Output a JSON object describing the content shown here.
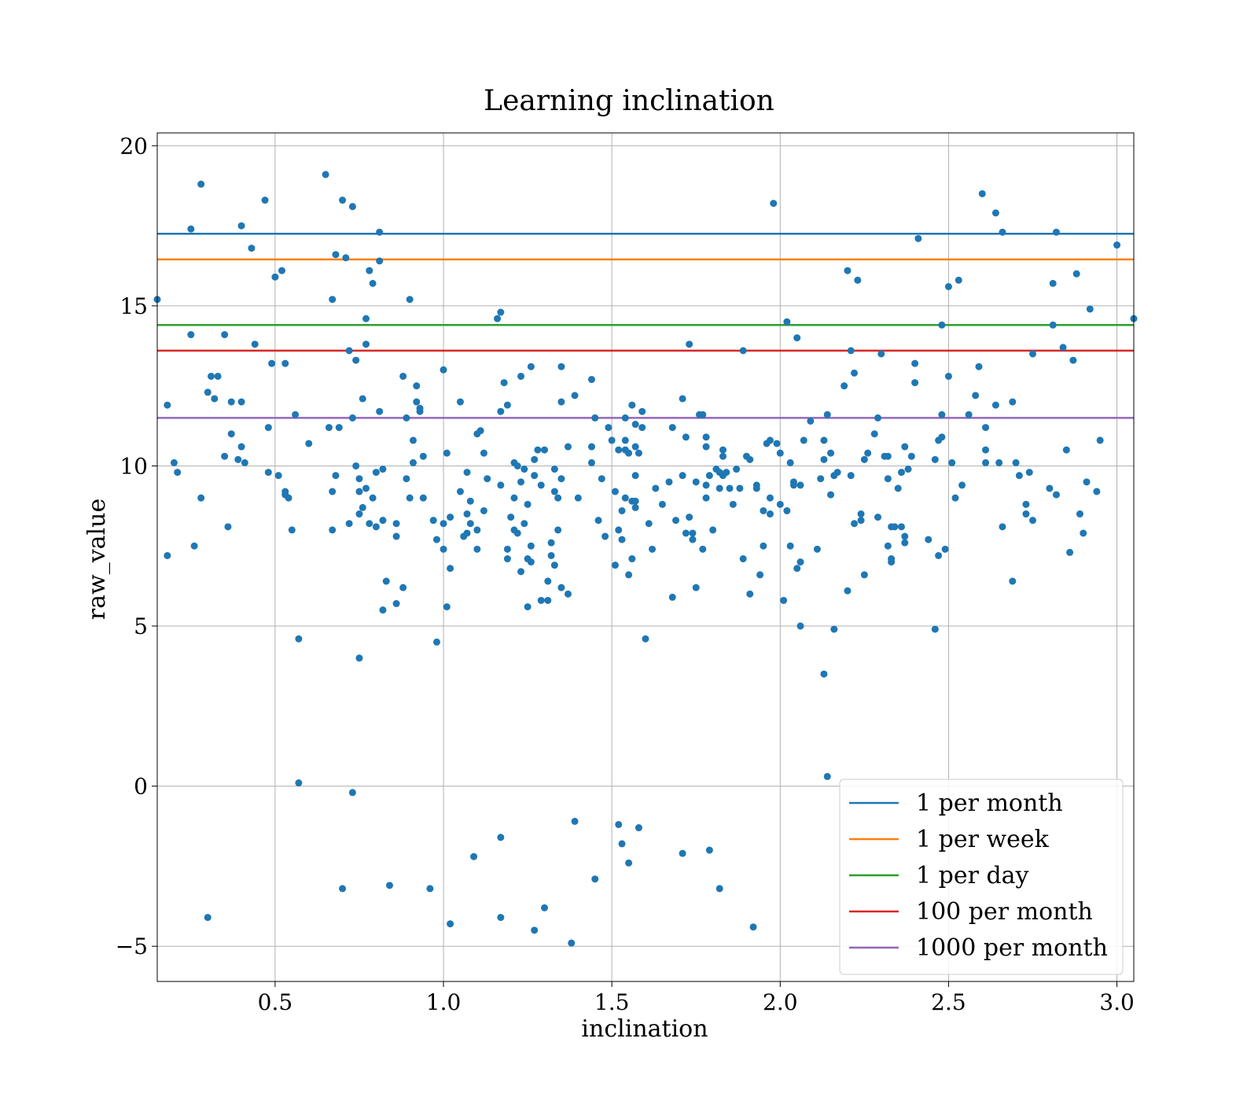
{
  "chart_data": {
    "type": "scatter",
    "title": "Learning inclination",
    "xlabel": "inclination",
    "ylabel": "raw_value",
    "xlim": [
      0.15,
      3.05
    ],
    "ylim": [
      -6.1,
      20.4
    ],
    "grid": true,
    "legend_position": "lower-right",
    "x_ticks": [
      0.5,
      1.0,
      1.5,
      2.0,
      2.5,
      3.0
    ],
    "x_tick_labels": [
      "0.5",
      "1.0",
      "1.5",
      "2.0",
      "2.5",
      "3.0"
    ],
    "y_ticks": [
      -5,
      0,
      5,
      10,
      15,
      20
    ],
    "y_tick_labels": [
      "−5",
      "0",
      "5",
      "10",
      "15",
      "20"
    ],
    "point_color": "#1f77b4",
    "horizontal_lines": [
      {
        "name": "1 per month",
        "y": 17.25,
        "color": "#1f77b4"
      },
      {
        "name": "1 per week",
        "y": 16.45,
        "color": "#ff7f0e"
      },
      {
        "name": "1 per day",
        "y": 14.4,
        "color": "#2ca02c"
      },
      {
        "name": "100 per month",
        "y": 13.6,
        "color": "#d62728"
      },
      {
        "name": "1000 per month",
        "y": 11.5,
        "color": "#9467bd"
      }
    ],
    "points": [
      [
        0.15,
        15.2
      ],
      [
        0.18,
        11.9
      ],
      [
        0.18,
        7.2
      ],
      [
        0.2,
        10.1
      ],
      [
        0.21,
        9.8
      ],
      [
        0.25,
        17.4
      ],
      [
        0.25,
        14.1
      ],
      [
        0.26,
        7.5
      ],
      [
        0.28,
        18.8
      ],
      [
        0.28,
        9.0
      ],
      [
        0.3,
        -4.1
      ],
      [
        0.3,
        12.3
      ],
      [
        0.31,
        12.8
      ],
      [
        0.32,
        12.1
      ],
      [
        0.33,
        12.8
      ],
      [
        0.35,
        14.1
      ],
      [
        0.35,
        10.3
      ],
      [
        0.36,
        8.1
      ],
      [
        0.37,
        11.0
      ],
      [
        0.37,
        12.0
      ],
      [
        0.39,
        10.2
      ],
      [
        0.4,
        17.5
      ],
      [
        0.4,
        12.0
      ],
      [
        0.4,
        10.6
      ],
      [
        0.41,
        10.1
      ],
      [
        0.43,
        16.8
      ],
      [
        0.44,
        13.8
      ],
      [
        0.47,
        18.3
      ],
      [
        0.48,
        9.8
      ],
      [
        0.48,
        11.2
      ],
      [
        0.49,
        13.2
      ],
      [
        0.5,
        15.9
      ],
      [
        0.51,
        9.7
      ],
      [
        0.52,
        16.1
      ],
      [
        0.53,
        9.1
      ],
      [
        0.53,
        13.2
      ],
      [
        0.53,
        9.2
      ],
      [
        0.54,
        9.0
      ],
      [
        0.55,
        8.0
      ],
      [
        0.56,
        11.6
      ],
      [
        0.57,
        0.1
      ],
      [
        0.57,
        4.6
      ],
      [
        0.6,
        10.7
      ],
      [
        0.65,
        19.1
      ],
      [
        0.66,
        11.2
      ],
      [
        0.67,
        9.2
      ],
      [
        0.67,
        8.0
      ],
      [
        0.67,
        15.2
      ],
      [
        0.68,
        16.6
      ],
      [
        0.68,
        9.7
      ],
      [
        0.69,
        11.2
      ],
      [
        0.7,
        -3.2
      ],
      [
        0.7,
        18.3
      ],
      [
        0.71,
        16.5
      ],
      [
        0.72,
        8.2
      ],
      [
        0.72,
        13.6
      ],
      [
        0.73,
        11.5
      ],
      [
        0.73,
        18.1
      ],
      [
        0.73,
        -0.2
      ],
      [
        0.74,
        13.3
      ],
      [
        0.74,
        10.0
      ],
      [
        0.75,
        9.6
      ],
      [
        0.75,
        8.5
      ],
      [
        0.75,
        9.2
      ],
      [
        0.75,
        4.0
      ],
      [
        0.76,
        8.7
      ],
      [
        0.76,
        12.1
      ],
      [
        0.77,
        14.6
      ],
      [
        0.77,
        13.8
      ],
      [
        0.77,
        9.3
      ],
      [
        0.78,
        8.2
      ],
      [
        0.78,
        16.1
      ],
      [
        0.79,
        15.7
      ],
      [
        0.79,
        9.0
      ],
      [
        0.8,
        8.1
      ],
      [
        0.8,
        9.8
      ],
      [
        0.81,
        16.4
      ],
      [
        0.81,
        11.7
      ],
      [
        0.81,
        17.3
      ],
      [
        0.82,
        9.9
      ],
      [
        0.82,
        5.5
      ],
      [
        0.82,
        8.3
      ],
      [
        0.83,
        6.4
      ],
      [
        0.84,
        -3.1
      ],
      [
        0.86,
        8.2
      ],
      [
        0.86,
        7.8
      ],
      [
        0.86,
        5.7
      ],
      [
        0.88,
        12.8
      ],
      [
        0.88,
        6.2
      ],
      [
        0.89,
        9.6
      ],
      [
        0.89,
        11.5
      ],
      [
        0.9,
        9.0
      ],
      [
        0.9,
        15.2
      ],
      [
        0.91,
        10.8
      ],
      [
        0.91,
        10.1
      ],
      [
        0.92,
        12.5
      ],
      [
        0.92,
        12.0
      ],
      [
        0.93,
        11.8
      ],
      [
        0.93,
        11.7
      ],
      [
        0.94,
        10.3
      ],
      [
        0.94,
        9.0
      ],
      [
        0.96,
        -3.2
      ],
      [
        0.97,
        8.3
      ],
      [
        0.98,
        4.5
      ],
      [
        0.98,
        7.7
      ],
      [
        1.0,
        13.0
      ],
      [
        1.0,
        8.2
      ],
      [
        1.0,
        7.4
      ],
      [
        1.01,
        5.6
      ],
      [
        1.01,
        10.4
      ],
      [
        1.02,
        -4.3
      ],
      [
        1.02,
        8.4
      ],
      [
        1.02,
        6.8
      ],
      [
        1.05,
        12.0
      ],
      [
        1.05,
        9.2
      ],
      [
        1.06,
        7.8
      ],
      [
        1.07,
        9.8
      ],
      [
        1.07,
        8.5
      ],
      [
        1.07,
        7.9
      ],
      [
        1.08,
        8.9
      ],
      [
        1.08,
        8.2
      ],
      [
        1.09,
        -2.2
      ],
      [
        1.1,
        11.0
      ],
      [
        1.1,
        8.0
      ],
      [
        1.1,
        7.4
      ],
      [
        1.11,
        11.1
      ],
      [
        1.12,
        10.4
      ],
      [
        1.12,
        8.6
      ],
      [
        1.13,
        9.6
      ],
      [
        1.16,
        14.6
      ],
      [
        1.17,
        14.8
      ],
      [
        1.17,
        9.4
      ],
      [
        1.17,
        11.7
      ],
      [
        1.17,
        -1.6
      ],
      [
        1.17,
        -4.1
      ],
      [
        1.18,
        12.6
      ],
      [
        1.19,
        11.9
      ],
      [
        1.19,
        7.4
      ],
      [
        1.19,
        7.1
      ],
      [
        1.2,
        8.4
      ],
      [
        1.21,
        10.1
      ],
      [
        1.21,
        9.0
      ],
      [
        1.21,
        8.0
      ],
      [
        1.22,
        7.9
      ],
      [
        1.22,
        10.0
      ],
      [
        1.23,
        6.7
      ],
      [
        1.23,
        9.5
      ],
      [
        1.23,
        12.8
      ],
      [
        1.24,
        8.2
      ],
      [
        1.24,
        9.9
      ],
      [
        1.25,
        5.6
      ],
      [
        1.25,
        7.1
      ],
      [
        1.25,
        8.8
      ],
      [
        1.26,
        7.0
      ],
      [
        1.26,
        7.5
      ],
      [
        1.26,
        13.1
      ],
      [
        1.27,
        10.2
      ],
      [
        1.27,
        9.7
      ],
      [
        1.27,
        -4.5
      ],
      [
        1.28,
        10.5
      ],
      [
        1.29,
        9.4
      ],
      [
        1.29,
        5.8
      ],
      [
        1.3,
        -3.8
      ],
      [
        1.3,
        10.5
      ],
      [
        1.31,
        5.8
      ],
      [
        1.31,
        6.4
      ],
      [
        1.32,
        7.2
      ],
      [
        1.32,
        7.6
      ],
      [
        1.33,
        9.9
      ],
      [
        1.33,
        6.9
      ],
      [
        1.33,
        9.2
      ],
      [
        1.34,
        9.0
      ],
      [
        1.34,
        8.0
      ],
      [
        1.35,
        12.0
      ],
      [
        1.35,
        6.2
      ],
      [
        1.35,
        9.6
      ],
      [
        1.35,
        13.1
      ],
      [
        1.37,
        10.6
      ],
      [
        1.37,
        6.0
      ],
      [
        1.38,
        -4.9
      ],
      [
        1.39,
        -1.1
      ],
      [
        1.39,
        12.2
      ],
      [
        1.4,
        9.0
      ],
      [
        1.44,
        12.7
      ],
      [
        1.44,
        10.6
      ],
      [
        1.44,
        10.1
      ],
      [
        1.45,
        11.5
      ],
      [
        1.45,
        -2.9
      ],
      [
        1.46,
        8.3
      ],
      [
        1.47,
        9.6
      ],
      [
        1.48,
        7.8
      ],
      [
        1.49,
        11.2
      ],
      [
        1.5,
        10.8
      ],
      [
        1.51,
        9.2
      ],
      [
        1.51,
        6.9
      ],
      [
        1.52,
        8.0
      ],
      [
        1.52,
        10.5
      ],
      [
        1.52,
        -1.2
      ],
      [
        1.53,
        8.6
      ],
      [
        1.53,
        7.7
      ],
      [
        1.53,
        -1.8
      ],
      [
        1.54,
        10.8
      ],
      [
        1.54,
        9.0
      ],
      [
        1.54,
        11.5
      ],
      [
        1.54,
        10.5
      ],
      [
        1.55,
        6.6
      ],
      [
        1.55,
        10.4
      ],
      [
        1.55,
        -2.4
      ],
      [
        1.56,
        8.9
      ],
      [
        1.56,
        11.9
      ],
      [
        1.56,
        7.1
      ],
      [
        1.57,
        11.3
      ],
      [
        1.57,
        8.9
      ],
      [
        1.57,
        10.6
      ],
      [
        1.57,
        8.7
      ],
      [
        1.57,
        9.7
      ],
      [
        1.58,
        -1.3
      ],
      [
        1.58,
        10.4
      ],
      [
        1.59,
        11.2
      ],
      [
        1.59,
        11.7
      ],
      [
        1.6,
        4.6
      ],
      [
        1.61,
        8.2
      ],
      [
        1.62,
        7.4
      ],
      [
        1.63,
        9.3
      ],
      [
        1.65,
        8.8
      ],
      [
        1.67,
        9.5
      ],
      [
        1.68,
        5.9
      ],
      [
        1.68,
        11.2
      ],
      [
        1.69,
        8.3
      ],
      [
        1.71,
        -2.1
      ],
      [
        1.71,
        12.1
      ],
      [
        1.71,
        9.7
      ],
      [
        1.72,
        7.9
      ],
      [
        1.72,
        10.9
      ],
      [
        1.73,
        13.8
      ],
      [
        1.73,
        8.4
      ],
      [
        1.74,
        7.7
      ],
      [
        1.74,
        7.9
      ],
      [
        1.75,
        9.5
      ],
      [
        1.75,
        6.2
      ],
      [
        1.76,
        11.6
      ],
      [
        1.77,
        7.4
      ],
      [
        1.77,
        11.6
      ],
      [
        1.78,
        9.4
      ],
      [
        1.78,
        9.0
      ],
      [
        1.78,
        10.6
      ],
      [
        1.78,
        10.9
      ],
      [
        1.79,
        -2.0
      ],
      [
        1.79,
        9.7
      ],
      [
        1.8,
        8.0
      ],
      [
        1.81,
        9.9
      ],
      [
        1.82,
        -3.2
      ],
      [
        1.82,
        9.8
      ],
      [
        1.82,
        9.3
      ],
      [
        1.83,
        10.5
      ],
      [
        1.83,
        10.3
      ],
      [
        1.83,
        9.7
      ],
      [
        1.84,
        9.8
      ],
      [
        1.85,
        9.3
      ],
      [
        1.86,
        8.8
      ],
      [
        1.87,
        9.9
      ],
      [
        1.88,
        9.3
      ],
      [
        1.89,
        13.6
      ],
      [
        1.89,
        7.1
      ],
      [
        1.9,
        10.3
      ],
      [
        1.91,
        10.2
      ],
      [
        1.91,
        6.0
      ],
      [
        1.92,
        -4.4
      ],
      [
        1.93,
        9.4
      ],
      [
        1.93,
        9.3
      ],
      [
        1.94,
        6.6
      ],
      [
        1.95,
        7.5
      ],
      [
        1.95,
        8.6
      ],
      [
        1.96,
        10.7
      ],
      [
        1.97,
        10.8
      ],
      [
        1.97,
        8.5
      ],
      [
        1.97,
        9.0
      ],
      [
        1.98,
        18.2
      ],
      [
        1.99,
        10.7
      ],
      [
        2.0,
        8.8
      ],
      [
        2.0,
        10.4
      ],
      [
        2.01,
        5.8
      ],
      [
        2.02,
        14.5
      ],
      [
        2.02,
        8.6
      ],
      [
        2.03,
        7.5
      ],
      [
        2.03,
        10.1
      ],
      [
        2.04,
        9.4
      ],
      [
        2.04,
        9.5
      ],
      [
        2.05,
        14.0
      ],
      [
        2.05,
        6.8
      ],
      [
        2.06,
        7.0
      ],
      [
        2.06,
        5.0
      ],
      [
        2.06,
        9.4
      ],
      [
        2.07,
        10.8
      ],
      [
        2.09,
        11.4
      ],
      [
        2.11,
        7.4
      ],
      [
        2.12,
        9.6
      ],
      [
        2.13,
        10.8
      ],
      [
        2.13,
        10.2
      ],
      [
        2.13,
        3.5
      ],
      [
        2.14,
        0.3
      ],
      [
        2.14,
        11.6
      ],
      [
        2.15,
        10.4
      ],
      [
        2.15,
        9.1
      ],
      [
        2.16,
        9.7
      ],
      [
        2.16,
        4.9
      ],
      [
        2.17,
        9.8
      ],
      [
        2.19,
        12.5
      ],
      [
        2.2,
        16.1
      ],
      [
        2.2,
        6.1
      ],
      [
        2.21,
        13.6
      ],
      [
        2.21,
        9.7
      ],
      [
        2.22,
        12.9
      ],
      [
        2.22,
        8.2
      ],
      [
        2.23,
        15.8
      ],
      [
        2.24,
        8.3
      ],
      [
        2.24,
        8.5
      ],
      [
        2.25,
        10.2
      ],
      [
        2.25,
        6.6
      ],
      [
        2.26,
        10.4
      ],
      [
        2.28,
        11.0
      ],
      [
        2.29,
        8.4
      ],
      [
        2.29,
        11.5
      ],
      [
        2.3,
        13.5
      ],
      [
        2.31,
        10.3
      ],
      [
        2.32,
        9.6
      ],
      [
        2.32,
        7.5
      ],
      [
        2.32,
        10.3
      ],
      [
        2.33,
        7.1
      ],
      [
        2.33,
        7.0
      ],
      [
        2.33,
        8.1
      ],
      [
        2.34,
        8.1
      ],
      [
        2.35,
        9.3
      ],
      [
        2.36,
        8.1
      ],
      [
        2.36,
        9.8
      ],
      [
        2.37,
        7.6
      ],
      [
        2.37,
        10.6
      ],
      [
        2.37,
        7.8
      ],
      [
        2.38,
        9.9
      ],
      [
        2.39,
        10.3
      ],
      [
        2.4,
        12.6
      ],
      [
        2.4,
        13.2
      ],
      [
        2.41,
        17.1
      ],
      [
        2.44,
        7.7
      ],
      [
        2.46,
        4.9
      ],
      [
        2.46,
        10.2
      ],
      [
        2.47,
        10.8
      ],
      [
        2.47,
        7.2
      ],
      [
        2.48,
        10.9
      ],
      [
        2.48,
        14.4
      ],
      [
        2.48,
        11.6
      ],
      [
        2.49,
        7.4
      ],
      [
        2.5,
        15.6
      ],
      [
        2.5,
        12.8
      ],
      [
        2.51,
        10.1
      ],
      [
        2.52,
        9.0
      ],
      [
        2.53,
        15.8
      ],
      [
        2.54,
        9.4
      ],
      [
        2.56,
        11.6
      ],
      [
        2.58,
        12.2
      ],
      [
        2.59,
        13.1
      ],
      [
        2.6,
        18.5
      ],
      [
        2.61,
        11.2
      ],
      [
        2.61,
        10.1
      ],
      [
        2.61,
        10.5
      ],
      [
        2.64,
        11.9
      ],
      [
        2.64,
        17.9
      ],
      [
        2.65,
        10.1
      ],
      [
        2.66,
        17.3
      ],
      [
        2.66,
        8.1
      ],
      [
        2.69,
        12.0
      ],
      [
        2.69,
        6.4
      ],
      [
        2.7,
        10.1
      ],
      [
        2.71,
        9.7
      ],
      [
        2.73,
        8.5
      ],
      [
        2.73,
        8.8
      ],
      [
        2.74,
        9.8
      ],
      [
        2.75,
        8.3
      ],
      [
        2.75,
        13.5
      ],
      [
        2.8,
        9.3
      ],
      [
        2.81,
        15.7
      ],
      [
        2.81,
        14.4
      ],
      [
        2.82,
        9.1
      ],
      [
        2.82,
        17.3
      ],
      [
        2.84,
        13.7
      ],
      [
        2.85,
        10.5
      ],
      [
        2.86,
        7.3
      ],
      [
        2.87,
        13.3
      ],
      [
        2.88,
        16.0
      ],
      [
        2.89,
        8.5
      ],
      [
        2.9,
        7.9
      ],
      [
        2.91,
        9.5
      ],
      [
        2.92,
        14.9
      ],
      [
        2.94,
        9.2
      ],
      [
        2.95,
        10.8
      ],
      [
        3.0,
        16.9
      ],
      [
        3.05,
        14.6
      ]
    ]
  }
}
